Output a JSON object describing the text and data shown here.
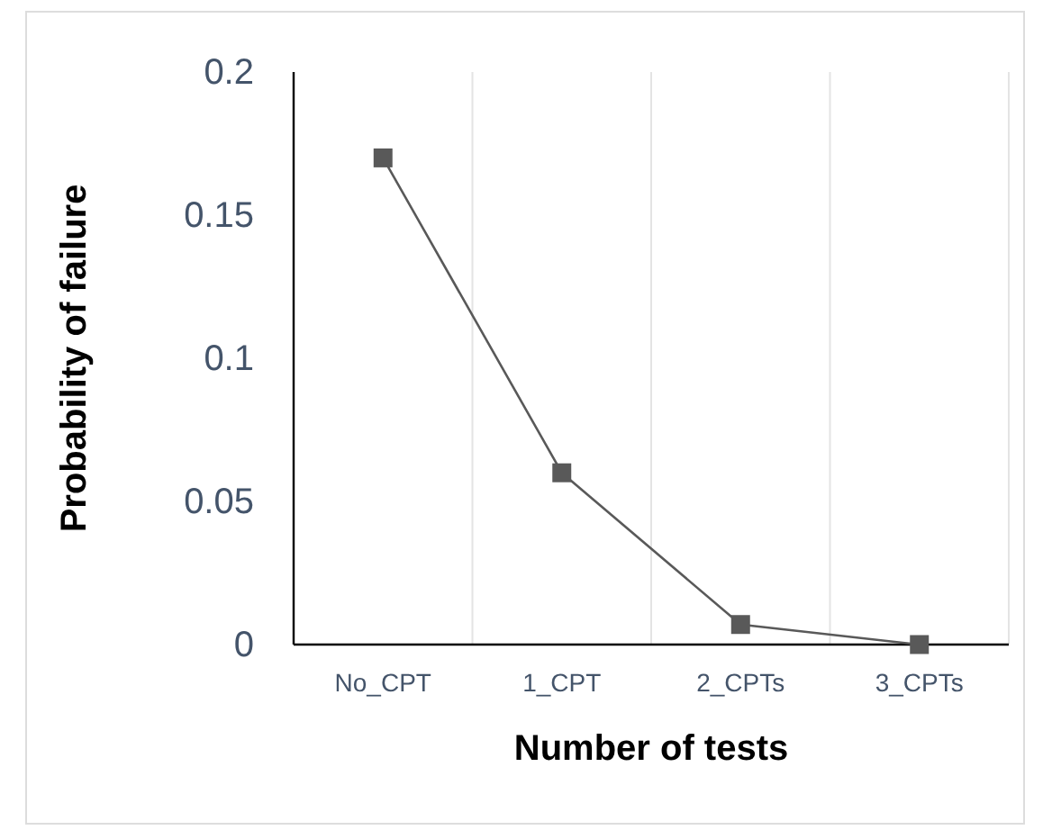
{
  "chart_data": {
    "type": "line",
    "xlabel": "Number of tests",
    "ylabel": "Probability of failure",
    "categories": [
      "No_CPT",
      "1_CPT",
      "2_CPTs",
      "3_CPTs"
    ],
    "series": [
      {
        "color": "#595959",
        "values": [
          0.17,
          0.06,
          0.007,
          0
        ]
      }
    ],
    "ylim": [
      0,
      0.2
    ],
    "yticks": [
      0,
      0.05,
      0.1,
      0.15,
      0.2
    ],
    "grid": "x",
    "marker": "square",
    "line_style": "solid"
  }
}
